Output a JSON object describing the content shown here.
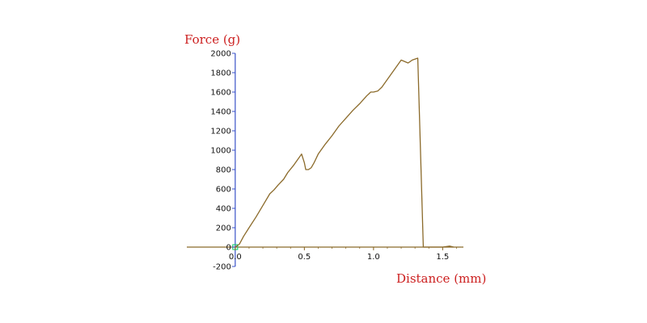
{
  "chart_data": {
    "type": "line",
    "xlabel": "Distance (mm)",
    "ylabel": "Force (g)",
    "xlim": [
      -0.35,
      1.65
    ],
    "ylim": [
      -200,
      2000
    ],
    "x_ticks": [
      0.0,
      0.5,
      1.0,
      1.5
    ],
    "x_tick_labels": [
      "0.0",
      "0.5",
      "1.0",
      "1.5"
    ],
    "y_ticks": [
      2000,
      1800,
      1600,
      1400,
      1200,
      1000,
      800,
      600,
      400,
      200,
      0,
      -200
    ],
    "y_tick_labels": [
      "2000",
      "1800",
      "1600",
      "1400",
      "1200",
      "1000",
      "800",
      "600",
      "400",
      "200",
      "0",
      "-200"
    ],
    "grid": false,
    "colors": {
      "series": "#8b6a2a",
      "x_axis": "#8b6a2a",
      "y_axis": "#3a52c8",
      "axis_title": "#cc1f1f",
      "marker": "#00cc66"
    },
    "series": [
      {
        "points": [
          [
            0.0,
            0
          ],
          [
            0.03,
            30
          ],
          [
            0.06,
            110
          ],
          [
            0.1,
            200
          ],
          [
            0.15,
            310
          ],
          [
            0.2,
            430
          ],
          [
            0.25,
            550
          ],
          [
            0.28,
            590
          ],
          [
            0.31,
            640
          ],
          [
            0.35,
            700
          ],
          [
            0.38,
            770
          ],
          [
            0.42,
            840
          ],
          [
            0.45,
            900
          ],
          [
            0.48,
            960
          ],
          [
            0.5,
            870
          ],
          [
            0.51,
            800
          ],
          [
            0.53,
            800
          ],
          [
            0.55,
            820
          ],
          [
            0.57,
            870
          ],
          [
            0.6,
            960
          ],
          [
            0.65,
            1060
          ],
          [
            0.7,
            1150
          ],
          [
            0.75,
            1250
          ],
          [
            0.8,
            1330
          ],
          [
            0.85,
            1410
          ],
          [
            0.9,
            1480
          ],
          [
            0.95,
            1560
          ],
          [
            0.98,
            1600
          ],
          [
            1.0,
            1600
          ],
          [
            1.03,
            1610
          ],
          [
            1.06,
            1650
          ],
          [
            1.1,
            1730
          ],
          [
            1.15,
            1830
          ],
          [
            1.2,
            1930
          ],
          [
            1.25,
            1900
          ],
          [
            1.28,
            1930
          ],
          [
            1.32,
            1950
          ],
          [
            1.36,
            0
          ],
          [
            1.5,
            0
          ],
          [
            1.55,
            10
          ],
          [
            1.58,
            0
          ]
        ]
      }
    ]
  }
}
